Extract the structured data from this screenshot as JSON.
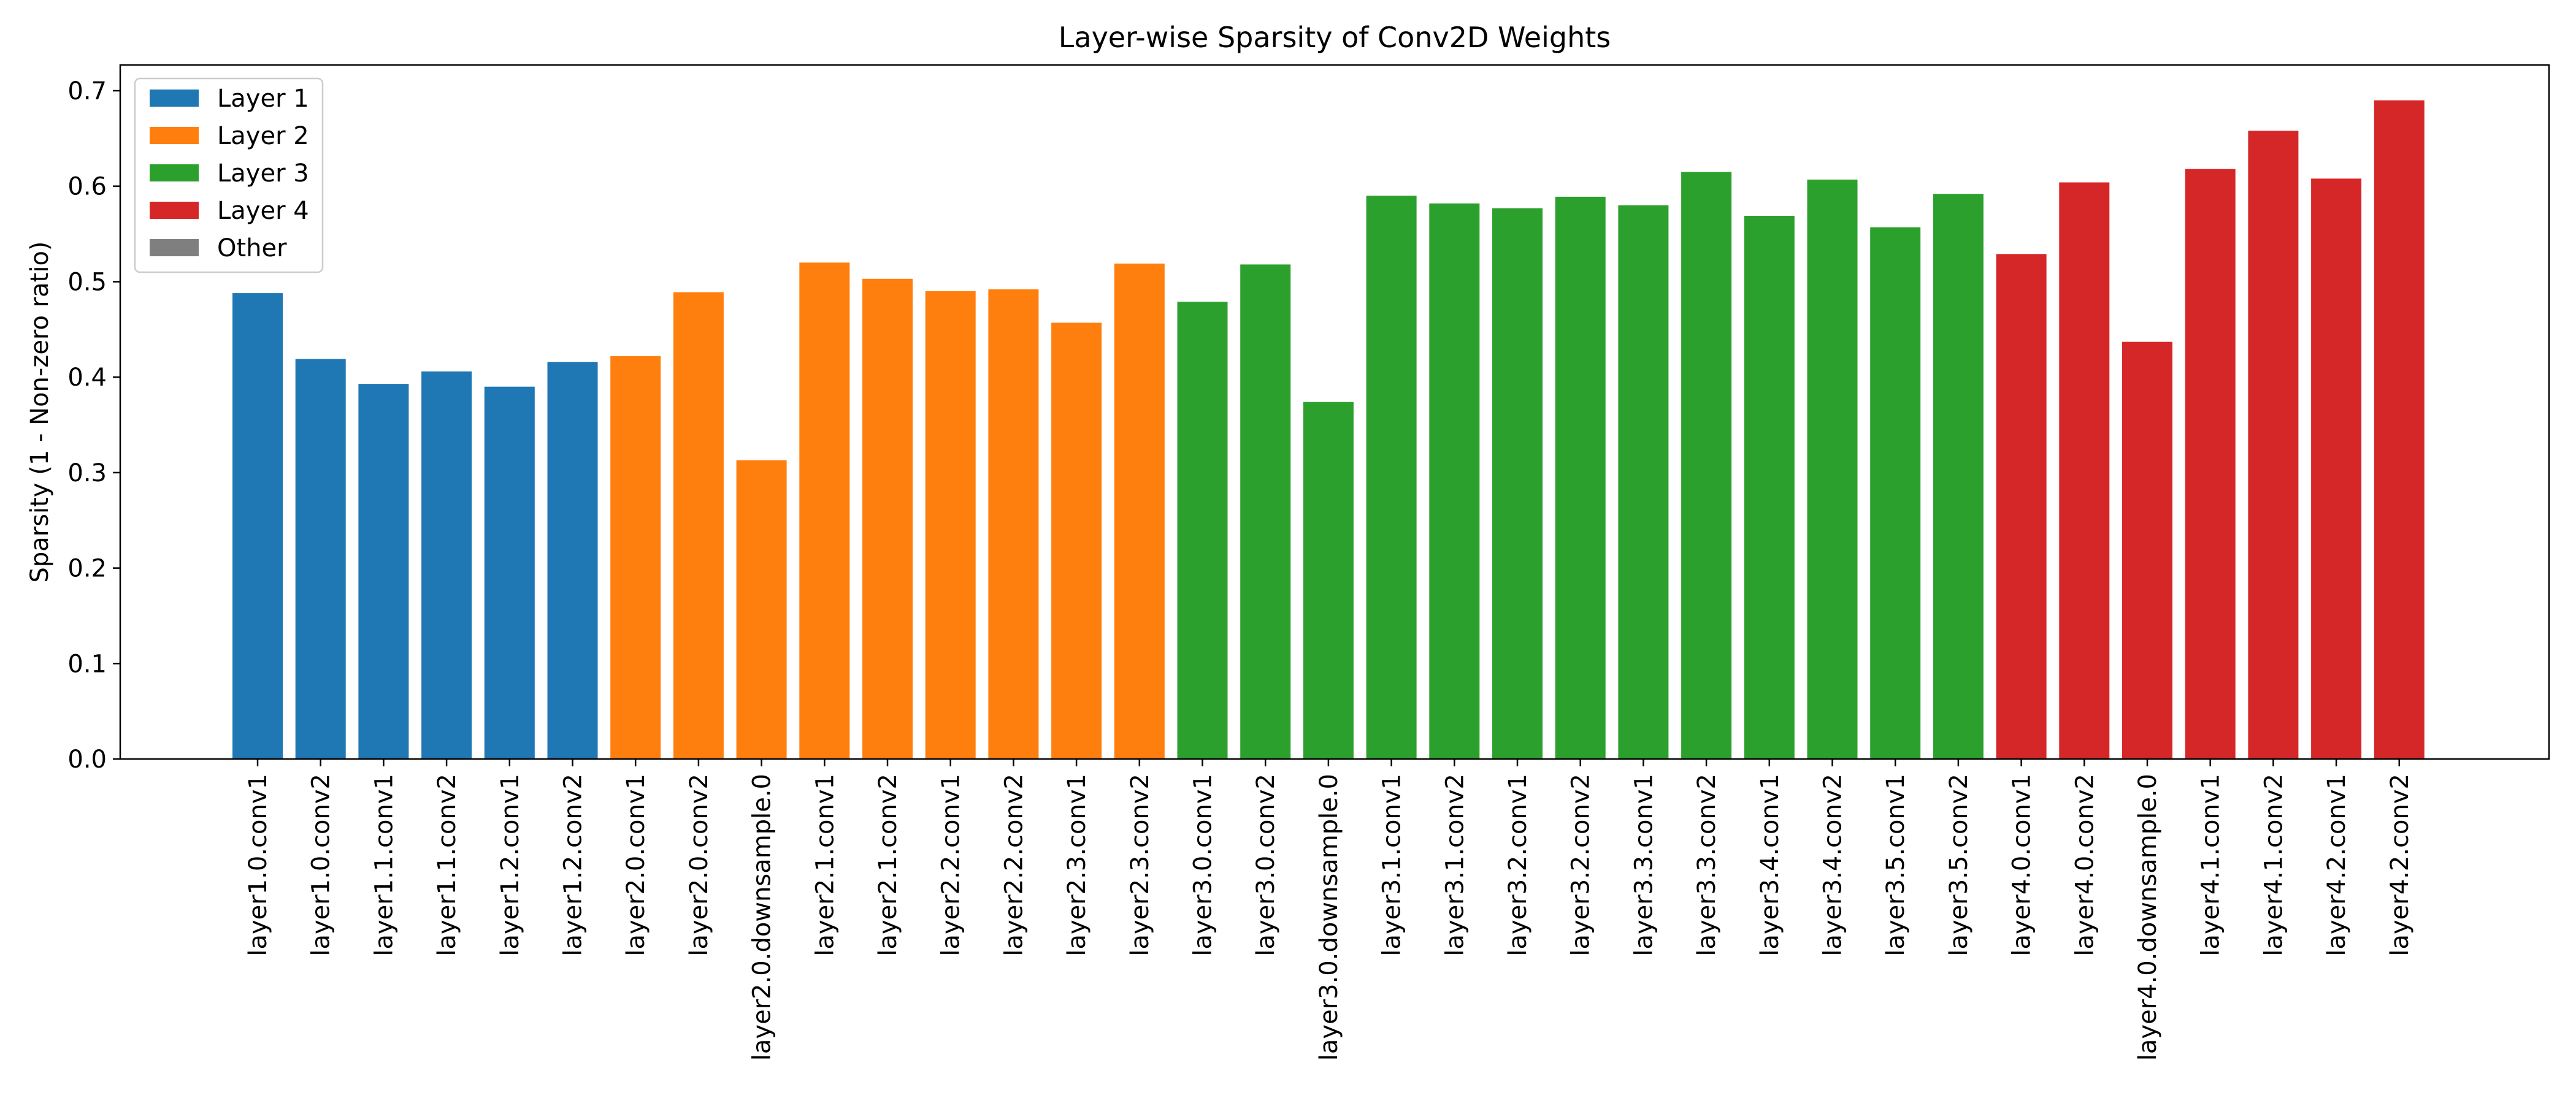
{
  "chart_data": {
    "type": "bar",
    "title": "Layer-wise Sparsity of Conv2D Weights",
    "xlabel": "",
    "ylabel": "Sparsity (1 - Non-zero ratio)",
    "ylim": [
      0,
      0.727
    ],
    "yticks": [
      "0.0",
      "0.1",
      "0.2",
      "0.3",
      "0.4",
      "0.5",
      "0.6",
      "0.7"
    ],
    "grid": false,
    "legend_position": "upper-left",
    "legend": [
      {
        "label": "Layer 1",
        "color": "#1f77b4"
      },
      {
        "label": "Layer 2",
        "color": "#ff7f0e"
      },
      {
        "label": "Layer 3",
        "color": "#2ca02c"
      },
      {
        "label": "Layer 4",
        "color": "#d62728"
      },
      {
        "label": "Other",
        "color": "#7f7f7f"
      }
    ],
    "categories": [
      "layer1.0.conv1",
      "layer1.0.conv2",
      "layer1.1.conv1",
      "layer1.1.conv2",
      "layer1.2.conv1",
      "layer1.2.conv2",
      "layer2.0.conv1",
      "layer2.0.conv2",
      "layer2.0.downsample.0",
      "layer2.1.conv1",
      "layer2.1.conv2",
      "layer2.2.conv1",
      "layer2.2.conv2",
      "layer2.3.conv1",
      "layer2.3.conv2",
      "layer3.0.conv1",
      "layer3.0.conv2",
      "layer3.0.downsample.0",
      "layer3.1.conv1",
      "layer3.1.conv2",
      "layer3.2.conv1",
      "layer3.2.conv2",
      "layer3.3.conv1",
      "layer3.3.conv2",
      "layer3.4.conv1",
      "layer3.4.conv2",
      "layer3.5.conv1",
      "layer3.5.conv2",
      "layer4.0.conv1",
      "layer4.0.conv2",
      "layer4.0.downsample.0",
      "layer4.1.conv1",
      "layer4.1.conv2",
      "layer4.2.conv1",
      "layer4.2.conv2"
    ],
    "values": [
      0.488,
      0.419,
      0.393,
      0.406,
      0.39,
      0.416,
      0.422,
      0.489,
      0.313,
      0.52,
      0.503,
      0.49,
      0.492,
      0.457,
      0.519,
      0.479,
      0.518,
      0.374,
      0.59,
      0.582,
      0.577,
      0.589,
      0.58,
      0.615,
      0.569,
      0.607,
      0.557,
      0.592,
      0.529,
      0.604,
      0.437,
      0.618,
      0.658,
      0.608,
      0.69
    ],
    "groups": [
      "Layer 1",
      "Layer 1",
      "Layer 1",
      "Layer 1",
      "Layer 1",
      "Layer 1",
      "Layer 2",
      "Layer 2",
      "Layer 2",
      "Layer 2",
      "Layer 2",
      "Layer 2",
      "Layer 2",
      "Layer 2",
      "Layer 2",
      "Layer 3",
      "Layer 3",
      "Layer 3",
      "Layer 3",
      "Layer 3",
      "Layer 3",
      "Layer 3",
      "Layer 3",
      "Layer 3",
      "Layer 3",
      "Layer 3",
      "Layer 3",
      "Layer 3",
      "Layer 4",
      "Layer 4",
      "Layer 4",
      "Layer 4",
      "Layer 4",
      "Layer 4",
      "Layer 4"
    ]
  }
}
